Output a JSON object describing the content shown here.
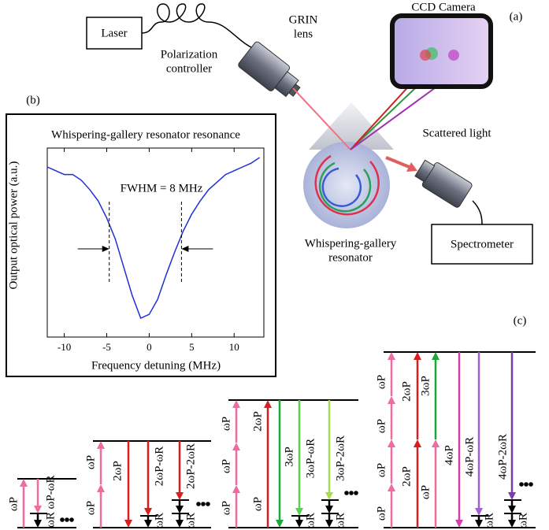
{
  "chart_data": {
    "type": "line",
    "title": "Whispering-gallery resonator resonance",
    "x_label": "Frequency detuning (MHz)",
    "y_label": "Output optical power (a.u.)",
    "annotation": "FWHM = 8 MHz",
    "fwhm_edges": [
      -4.7,
      3.8
    ],
    "x": [
      -12,
      -11,
      -10,
      -9,
      -8,
      -7,
      -6,
      -5,
      -4,
      -3,
      -2,
      -1,
      0,
      1,
      2,
      3,
      4,
      5,
      6,
      7,
      8,
      9,
      10,
      11,
      12,
      13
    ],
    "series": [
      {
        "color": "#1f2fd6",
        "values": [
          0.9,
          0.88,
          0.86,
          0.86,
          0.83,
          0.78,
          0.72,
          0.63,
          0.52,
          0.37,
          0.22,
          0.1,
          0.12,
          0.2,
          0.33,
          0.45,
          0.56,
          0.65,
          0.72,
          0.78,
          0.82,
          0.86,
          0.88,
          0.9,
          0.92,
          0.95
        ]
      }
    ],
    "xlim": [
      -12,
      13.5
    ],
    "ylim": [
      0,
      1
    ],
    "xticks": [
      -10,
      -5,
      0,
      5,
      10
    ]
  },
  "diagram": {
    "panel_a": {
      "label": "(a)",
      "laser": "Laser",
      "polarization_controller": [
        "Polarization",
        "controller"
      ],
      "grin_lens": [
        "GRIN",
        "lens"
      ],
      "ccd_camera": "CCD Camera",
      "scattered_light": "Scattered light",
      "resonator": [
        "Whispering-gallery",
        "resonator"
      ],
      "spectrometer": "Spectrometer"
    },
    "panel_b": {
      "label": "(b)"
    },
    "panel_c": {
      "label": "(c)",
      "diagrams": [
        {
          "labels": [
            "ωP",
            "ωP-ωR",
            "ωR"
          ]
        },
        {
          "labels": [
            "ωP",
            "ωP",
            "2ωP",
            "2ωP-ωR",
            "2ωP-2ωR",
            "ωR",
            "ωR"
          ]
        },
        {
          "labels": [
            "ωP",
            "ωP",
            "ωP",
            "ωP",
            "2ωP",
            "3ωP",
            "3ωP-ωR",
            "3ωP-2ωR",
            "ωR",
            "ωR"
          ]
        },
        {
          "labels": [
            "ωP",
            "ωP",
            "ωP",
            "ωP",
            "2ωP",
            "2ωP",
            "3ωP",
            "ωP",
            "4ωP",
            "4ωP-ωR",
            "4ωP-2ωR",
            "ωR",
            "ωR"
          ]
        }
      ]
    }
  }
}
